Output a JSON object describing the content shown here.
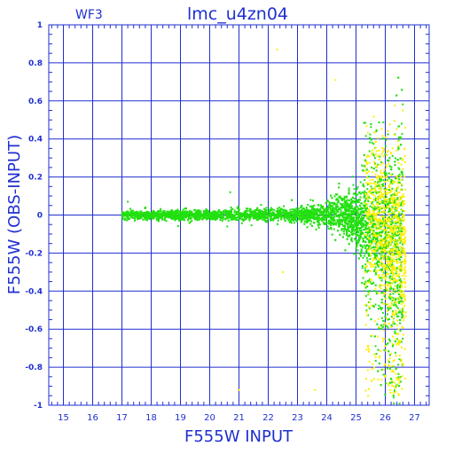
{
  "corner_label": "WF3",
  "chart_data": {
    "type": "scatter",
    "title": "lmc_u4zn04",
    "xlabel": "F555W INPUT",
    "ylabel": "F555W (OBS-INPUT)",
    "xlim": [
      14.5,
      27.5
    ],
    "ylim": [
      -1,
      1
    ],
    "xticks": [
      "15",
      "16",
      "17",
      "18",
      "19",
      "20",
      "21",
      "22",
      "23",
      "24",
      "25",
      "26",
      "27"
    ],
    "yticks": [
      "1",
      "0.8",
      "0.6",
      "0.4",
      "0.2",
      "0",
      "-0.2",
      "-0.4",
      "-0.6",
      "-0.8",
      "-1"
    ],
    "grid": true,
    "colors": {
      "axes": "#1f2fd0",
      "series_main": "#22e010",
      "series_faint": "#ffee00"
    },
    "series": [
      {
        "color": "#22e010",
        "description_points": [
          [
            17.0,
            0.0
          ],
          [
            18.0,
            0.0
          ],
          [
            19.0,
            0.0
          ],
          [
            20.0,
            0.0
          ],
          [
            21.0,
            0.0
          ],
          [
            22.0,
            0.0
          ],
          [
            23.0,
            0.0
          ],
          [
            24.0,
            0.02
          ],
          [
            25.0,
            0.03
          ],
          [
            25.6,
            0.05
          ],
          [
            25.5,
            0.52
          ],
          [
            25.8,
            0.35
          ],
          [
            26.0,
            -0.4
          ],
          [
            26.3,
            -0.7
          ],
          [
            26.5,
            -0.85
          ]
        ]
      },
      {
        "color": "#ffee00",
        "description_points": [
          [
            25.5,
            0.45
          ],
          [
            25.8,
            0.1
          ],
          [
            26.0,
            -0.3
          ],
          [
            26.2,
            -0.6
          ],
          [
            22.3,
            0.87
          ],
          [
            24.3,
            0.71
          ]
        ]
      }
    ]
  }
}
